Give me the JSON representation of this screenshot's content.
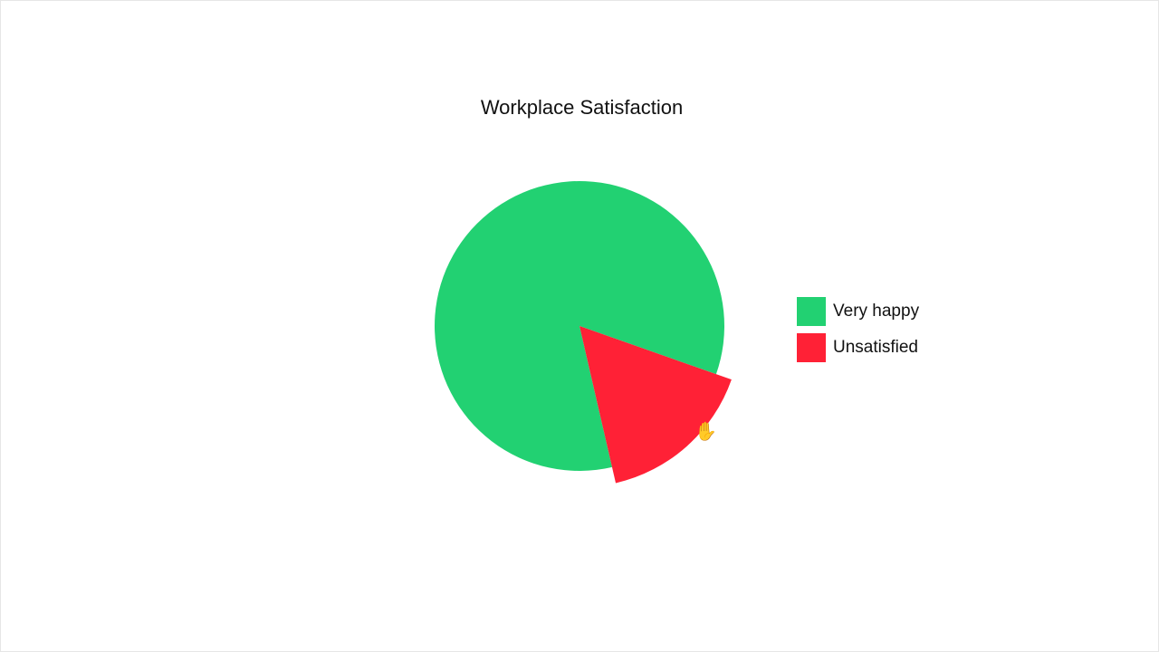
{
  "chart_data": {
    "type": "pie",
    "title": "Workplace Satisfaction",
    "categories": [
      "Very happy",
      "Unsatisfied"
    ],
    "values": [
      84,
      16
    ],
    "colors": [
      "#22d172",
      "#ff2136"
    ],
    "highlighted": "Unsatisfied",
    "legend_position": "right"
  },
  "cursor": {
    "icon": "grab-hand-icon"
  }
}
